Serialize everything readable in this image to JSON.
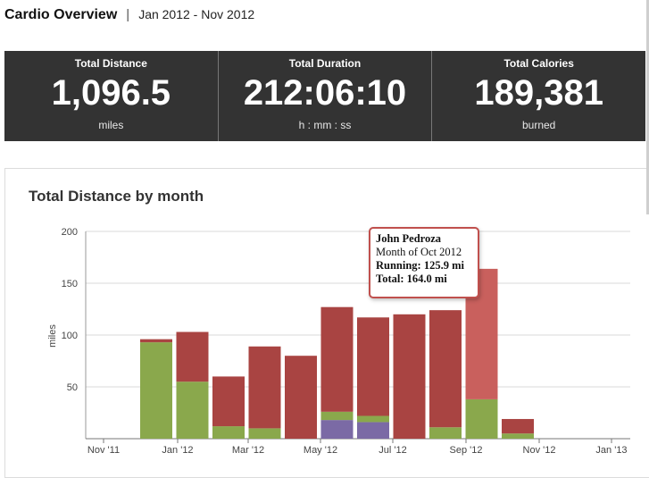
{
  "header": {
    "title": "Cardio Overview",
    "separator": "|",
    "date_range": "Jan 2012 - Nov 2012"
  },
  "stats": [
    {
      "label": "Total Distance",
      "value": "1,096.5",
      "unit": "miles"
    },
    {
      "label": "Total Duration",
      "value": "212:06:10",
      "unit": "h : mm : ss"
    },
    {
      "label": "Total Calories",
      "value": "189,381",
      "unit": "burned"
    }
  ],
  "panel": {
    "title": "Total Distance by month"
  },
  "tooltip": {
    "name": "John Pedroza",
    "period": "Month of Oct 2012",
    "running_label": "Running:",
    "running_value": "125.9 mi",
    "total_label": "Total:",
    "total_value": "164.0 mi"
  },
  "colors": {
    "running": "#a94442",
    "running_highlight": "#c9605d",
    "green": "#8aa84c",
    "purple": "#7b6aa5",
    "stat_bg": "#333333"
  },
  "chart_data": {
    "type": "bar",
    "stacked": true,
    "ylabel": "miles",
    "ylim": [
      0,
      200
    ],
    "yticks": [
      50,
      100,
      150,
      200
    ],
    "xtick_labels": [
      "Nov '11",
      "Jan '12",
      "Mar '12",
      "May '12",
      "Jul '12",
      "Sep '12",
      "Nov '12",
      "Jan '13"
    ],
    "categories": [
      "Dec 2011",
      "Jan 2012",
      "Feb 2012",
      "Mar 2012",
      "Apr 2012",
      "May 2012",
      "Jun 2012",
      "Jul 2012",
      "Aug 2012",
      "Sep 2012",
      "Oct 2012",
      "Nov 2012"
    ],
    "series": [
      {
        "color": "purple",
        "values": [
          0,
          0,
          0,
          0,
          0,
          0,
          18,
          16,
          0,
          0,
          0,
          0
        ]
      },
      {
        "color": "green",
        "values": [
          0,
          93,
          55,
          12,
          10,
          0,
          8,
          6,
          0,
          11,
          38,
          5
        ]
      },
      {
        "color": "running",
        "values": [
          0,
          3,
          48,
          48,
          79,
          80,
          101,
          95,
          120,
          113,
          125.9,
          14
        ]
      }
    ],
    "highlighted_category": "Oct 2012",
    "grid": true
  }
}
